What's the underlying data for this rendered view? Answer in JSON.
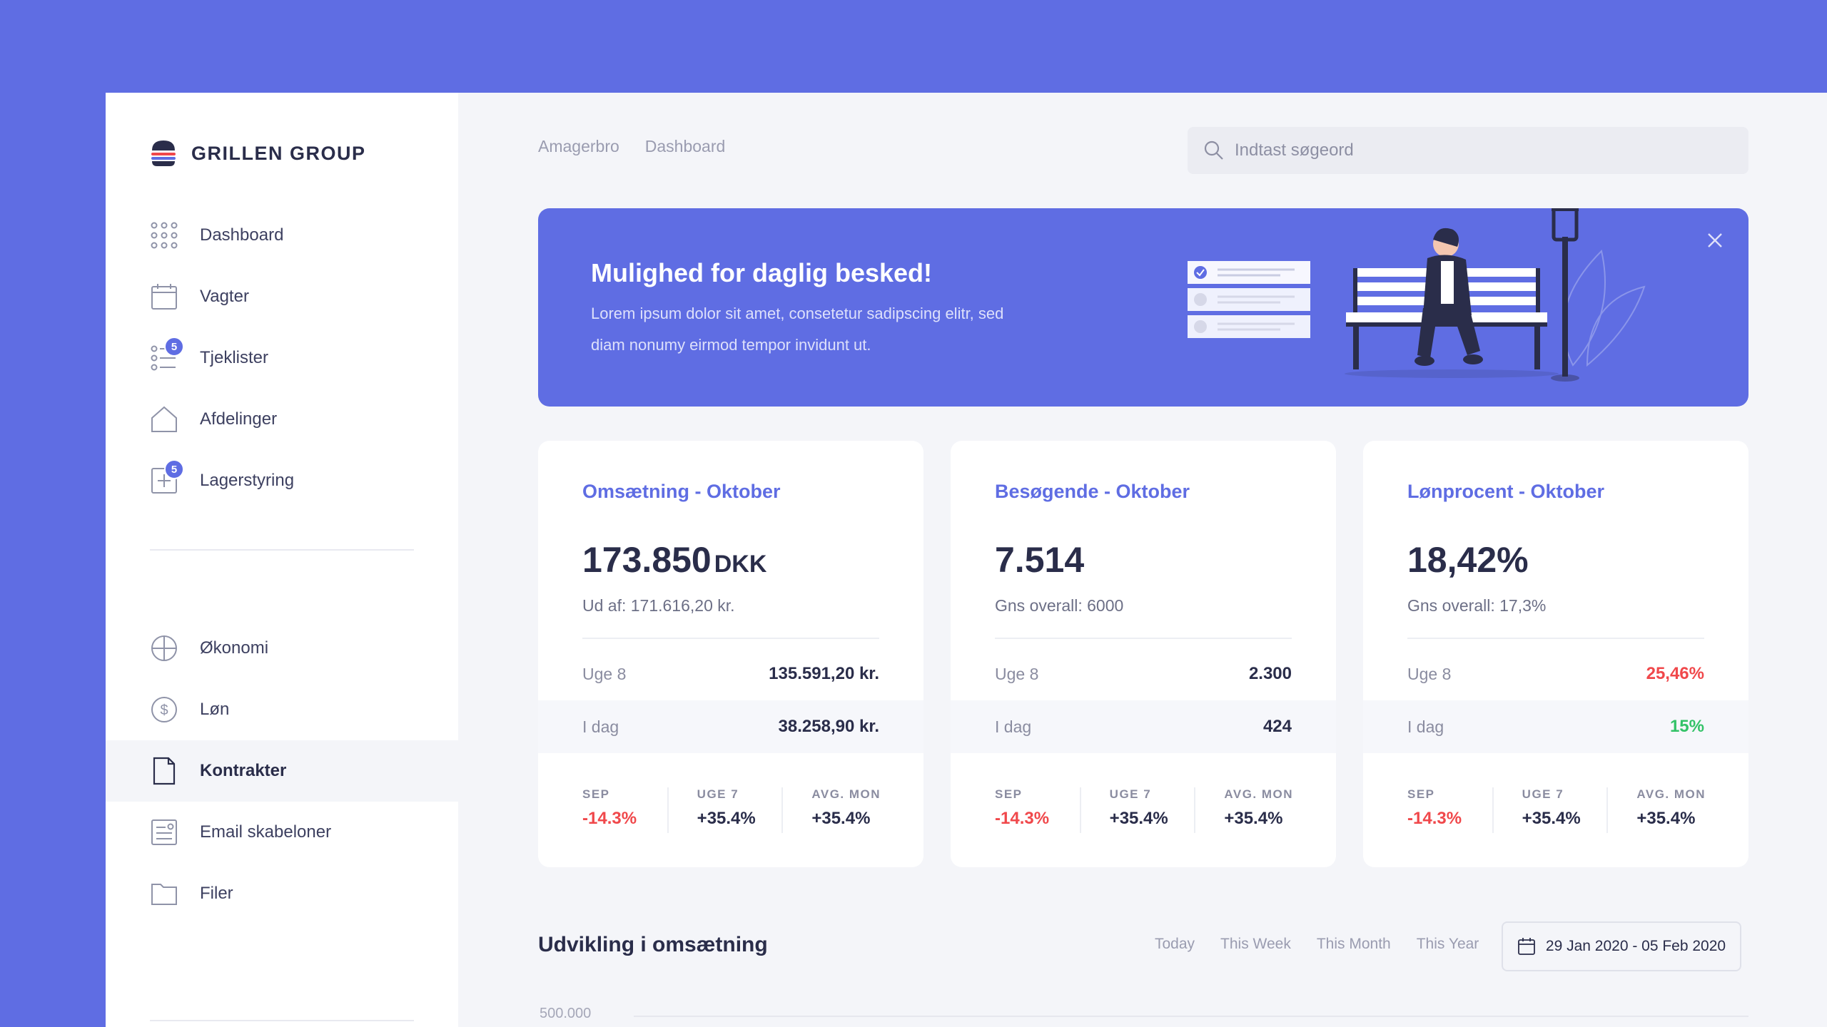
{
  "brand": {
    "name": "GRILLEN GROUP"
  },
  "sidebar": {
    "items": [
      {
        "label": "Dashboard",
        "icon": "grid-icon"
      },
      {
        "label": "Vagter",
        "icon": "calendar-icon"
      },
      {
        "label": "Tjeklister",
        "icon": "checklist-icon",
        "badge": "5"
      },
      {
        "label": "Afdelinger",
        "icon": "home-icon"
      },
      {
        "label": "Lagerstyring",
        "icon": "inventory-icon",
        "badge": "5"
      },
      {
        "label": "Økonomi",
        "icon": "pie-chart-icon"
      },
      {
        "label": "Løn",
        "icon": "dollar-icon"
      },
      {
        "label": "Kontrakter",
        "icon": "document-icon",
        "active": true
      },
      {
        "label": "Email skabeloner",
        "icon": "email-template-icon"
      },
      {
        "label": "Filer",
        "icon": "folder-icon"
      }
    ]
  },
  "breadcrumb": [
    "Amagerbro",
    "Dashboard"
  ],
  "search": {
    "placeholder": "Indtast søgeord"
  },
  "banner": {
    "title": "Mulighed for daglig besked!",
    "text": "Lorem ipsum dolor sit amet, consetetur sadipscing elitr, sed diam nonumy eirmod tempor invidunt ut."
  },
  "cards": [
    {
      "title": "Omsætning - Oktober",
      "value": "173.850",
      "unit": "DKK",
      "sub": "Ud af: 171.616,20 kr.",
      "rows": [
        {
          "label": "Uge 8",
          "value": "135.591,20 kr."
        },
        {
          "label": "I dag",
          "value": "38.258,90 kr."
        }
      ],
      "stats": [
        {
          "label": "SEP",
          "value": "-14.3%"
        },
        {
          "label": "UGE 7",
          "value": "+35.4%"
        },
        {
          "label": "AVG. MON",
          "value": "+35.4%"
        }
      ]
    },
    {
      "title": "Besøgende - Oktober",
      "value": "7.514",
      "unit": "",
      "sub": "Gns overall: 6000",
      "rows": [
        {
          "label": "Uge 8",
          "value": "2.300"
        },
        {
          "label": "I dag",
          "value": "424"
        }
      ],
      "stats": [
        {
          "label": "SEP",
          "value": "-14.3%"
        },
        {
          "label": "UGE 7",
          "value": "+35.4%"
        },
        {
          "label": "AVG. MON",
          "value": "+35.4%"
        }
      ]
    },
    {
      "title": "Lønprocent - Oktober",
      "value": "18,42%",
      "unit": "",
      "sub": "Gns overall: 17,3%",
      "rows": [
        {
          "label": "Uge 8",
          "value": "25,46%"
        },
        {
          "label": "I dag",
          "value": "15%"
        }
      ],
      "stats": [
        {
          "label": "SEP",
          "value": "-14.3%"
        },
        {
          "label": "UGE 7",
          "value": "+35.4%"
        },
        {
          "label": "AVG. MON",
          "value": "+35.4%"
        }
      ]
    }
  ],
  "chart_section": {
    "title": "Udvikling i omsætning",
    "ranges": [
      "Today",
      "This Week",
      "This Month",
      "This Year"
    ],
    "date_range": "29 Jan 2020 - 05 Feb 2020",
    "y_tick_top": "500.000"
  },
  "colors": {
    "accent": "#5f6de3",
    "negative": "#f0484b",
    "positive": "#33c267"
  }
}
